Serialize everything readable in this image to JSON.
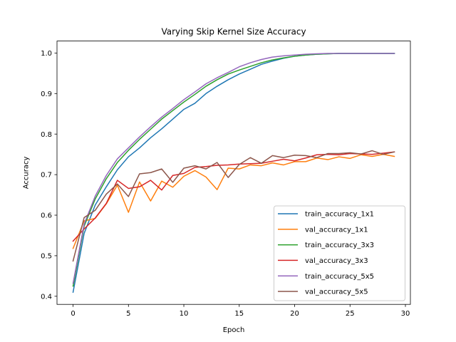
{
  "chart_data": {
    "type": "line",
    "title": "Varying Skip Kernel Size Accuracy",
    "xlabel": "Epoch",
    "ylabel": "Accuracy",
    "xlim": [
      -1.45,
      30.45
    ],
    "ylim": [
      0.38,
      1.0295
    ],
    "xticks": [
      0,
      5,
      10,
      15,
      20,
      25,
      30
    ],
    "yticks": [
      0.4,
      0.5,
      0.6,
      0.7,
      0.8,
      0.9,
      1.0
    ],
    "ytick_labels": [
      "0.4",
      "0.5",
      "0.6",
      "0.7",
      "0.8",
      "0.9",
      "1.0"
    ],
    "grid": false,
    "legend_position": "lower right",
    "x": [
      0,
      1,
      2,
      3,
      4,
      5,
      6,
      7,
      8,
      9,
      10,
      11,
      12,
      13,
      14,
      15,
      16,
      17,
      18,
      19,
      20,
      21,
      22,
      23,
      24,
      25,
      26,
      27,
      28,
      29
    ],
    "series": [
      {
        "name": "train_accuracy_1x1",
        "color": "#1f77b4",
        "values": [
          0.41,
          0.555,
          0.625,
          0.67,
          0.712,
          0.744,
          0.766,
          0.791,
          0.813,
          0.837,
          0.861,
          0.876,
          0.9,
          0.918,
          0.934,
          0.948,
          0.96,
          0.972,
          0.98,
          0.987,
          0.992,
          0.995,
          0.997,
          0.998,
          0.999,
          0.999,
          0.999,
          0.999,
          0.999,
          0.999
        ]
      },
      {
        "name": "val_accuracy_1x1",
        "color": "#ff7f0e",
        "values": [
          0.518,
          0.586,
          0.592,
          0.628,
          0.674,
          0.607,
          0.682,
          0.635,
          0.684,
          0.669,
          0.696,
          0.71,
          0.694,
          0.663,
          0.716,
          0.714,
          0.724,
          0.722,
          0.729,
          0.724,
          0.732,
          0.732,
          0.741,
          0.737,
          0.744,
          0.74,
          0.749,
          0.745,
          0.75,
          0.745
        ]
      },
      {
        "name": "train_accuracy_3x3",
        "color": "#2ca02c",
        "values": [
          0.425,
          0.573,
          0.64,
          0.69,
          0.73,
          0.76,
          0.787,
          0.812,
          0.837,
          0.858,
          0.879,
          0.898,
          0.918,
          0.934,
          0.948,
          0.958,
          0.967,
          0.976,
          0.983,
          0.988,
          0.992,
          0.995,
          0.997,
          0.998,
          0.999,
          0.999,
          0.999,
          0.999,
          0.999,
          0.999
        ]
      },
      {
        "name": "val_accuracy_3x3",
        "color": "#d62728",
        "values": [
          0.536,
          0.566,
          0.593,
          0.629,
          0.686,
          0.666,
          0.67,
          0.686,
          0.662,
          0.698,
          0.703,
          0.718,
          0.72,
          0.723,
          0.724,
          0.726,
          0.727,
          0.728,
          0.733,
          0.738,
          0.734,
          0.741,
          0.749,
          0.75,
          0.749,
          0.752,
          0.751,
          0.75,
          0.753,
          0.756
        ]
      },
      {
        "name": "train_accuracy_5x5",
        "color": "#9467bd",
        "values": [
          0.432,
          0.578,
          0.647,
          0.698,
          0.739,
          0.766,
          0.793,
          0.818,
          0.842,
          0.863,
          0.885,
          0.904,
          0.924,
          0.939,
          0.952,
          0.966,
          0.976,
          0.984,
          0.99,
          0.993,
          0.995,
          0.997,
          0.998,
          0.999,
          0.999,
          0.999,
          0.999,
          0.999,
          0.999,
          0.999
        ]
      },
      {
        "name": "val_accuracy_5x5",
        "color": "#8c564b",
        "values": [
          0.487,
          0.594,
          0.612,
          0.652,
          0.677,
          0.646,
          0.702,
          0.705,
          0.714,
          0.681,
          0.716,
          0.722,
          0.714,
          0.73,
          0.693,
          0.725,
          0.742,
          0.728,
          0.747,
          0.742,
          0.748,
          0.747,
          0.742,
          0.752,
          0.752,
          0.754,
          0.751,
          0.759,
          0.75,
          0.756
        ]
      }
    ]
  }
}
